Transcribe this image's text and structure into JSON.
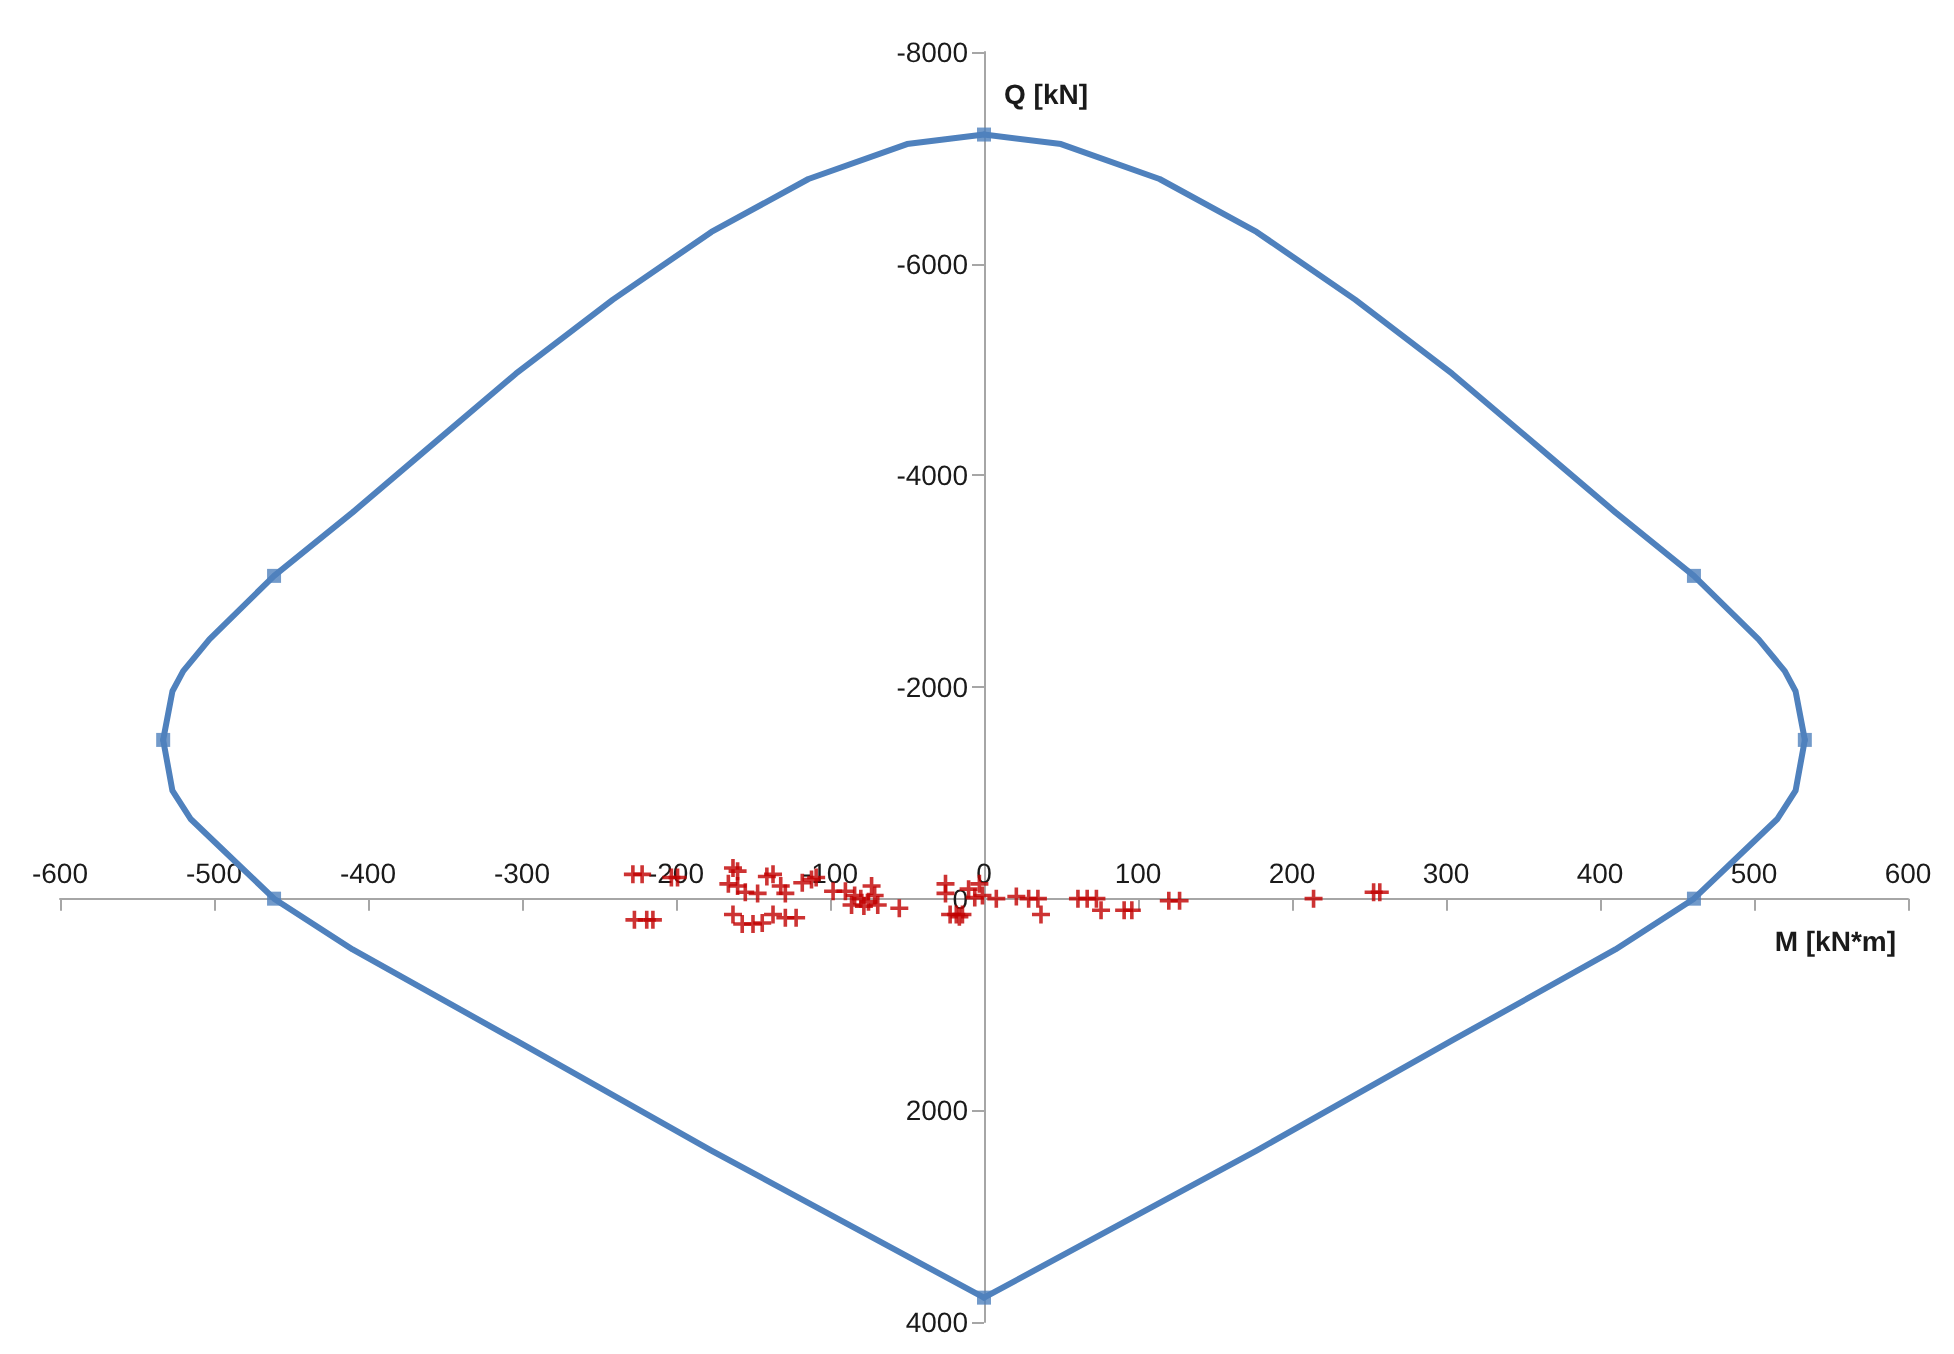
{
  "chart_data": {
    "type": "scatter",
    "xlabel": "M [kN*m]",
    "ylabel": "Q [kN]",
    "xlim": [
      -600,
      600
    ],
    "ylim": [
      4000,
      -8000
    ],
    "xticks": [
      -600,
      -500,
      -400,
      -300,
      -200,
      -100,
      0,
      100,
      200,
      300,
      400,
      500,
      600
    ],
    "yticks": [
      -8000,
      -6000,
      -4000,
      -2000,
      0,
      2000,
      4000
    ],
    "grid": false,
    "series": [
      {
        "type": "line",
        "color": "#4f81bd",
        "marker": "none",
        "line_style": "solid",
        "x": [
          0,
          -50,
          -114,
          -177,
          -241,
          -304,
          -368,
          -410,
          -461,
          -503,
          -520,
          -527,
          -533
        ],
        "values": [
          -7220,
          -7130,
          -6800,
          -6300,
          -5660,
          -4960,
          -4170,
          -3650,
          -3050,
          -2450,
          -2150,
          -1960,
          -1500
        ]
      },
      {
        "type": "line",
        "color": "#4f81bd",
        "marker": "none",
        "line_style": "solid",
        "x": [
          -533,
          -527,
          -515,
          -497,
          -461,
          -410,
          -304,
          -177,
          0
        ],
        "values": [
          -1500,
          -1020,
          -750,
          -500,
          0,
          480,
          1340,
          2380,
          3770
        ]
      },
      {
        "type": "line",
        "color": "#4f81bd",
        "marker": "none",
        "line_style": "solid",
        "x": [
          0,
          177,
          304,
          410,
          461,
          497,
          515,
          527,
          533
        ],
        "values": [
          3770,
          2380,
          1340,
          480,
          0,
          -500,
          -750,
          -1020,
          -1500
        ]
      },
      {
        "type": "line",
        "color": "#4f81bd",
        "marker": "none",
        "line_style": "solid",
        "x": [
          533,
          527,
          520,
          503,
          461,
          410,
          368,
          304,
          241,
          177,
          114,
          50,
          0
        ],
        "values": [
          -1500,
          -1960,
          -2150,
          -2450,
          -3050,
          -3650,
          -4170,
          -4960,
          -5660,
          -6300,
          -6800,
          -7130,
          -7220
        ]
      },
      {
        "color": "#4f81bd",
        "marker": "square",
        "x": [
          0,
          -461,
          -533,
          -461,
          0,
          461,
          533,
          461
        ],
        "values": [
          -7220,
          -3050,
          -1500,
          0,
          3770,
          0,
          -1500,
          -3050
        ]
      },
      {
        "color": "#c00000",
        "marker": "cross",
        "x": [
          -228,
          -222,
          -203,
          -199,
          -227,
          -219,
          -215,
          -163,
          -160,
          -166,
          -160,
          -155,
          -147,
          -141,
          -137,
          -132,
          -129,
          -118,
          -112,
          -109,
          -163,
          -157,
          -150,
          -144,
          -137,
          -129,
          -122,
          -98,
          -90,
          -84,
          -80,
          -75,
          -71,
          -86,
          -78,
          -69,
          -73,
          -55,
          -25,
          -25,
          -22,
          -18,
          -14,
          -10,
          -6,
          -16,
          -3,
          -1,
          8,
          21,
          29,
          35,
          37,
          61,
          67,
          73,
          76,
          91,
          96,
          120,
          127,
          214,
          253,
          257
        ],
        "values": [
          -230,
          -230,
          -200,
          -200,
          200,
          200,
          200,
          -290,
          -260,
          -140,
          -120,
          -60,
          -50,
          -210,
          -230,
          -120,
          -50,
          -150,
          -180,
          -200,
          150,
          240,
          240,
          230,
          150,
          180,
          180,
          -70,
          -70,
          -30,
          0,
          30,
          -30,
          60,
          70,
          60,
          -120,
          90,
          -140,
          -50,
          150,
          150,
          150,
          -90,
          -10,
          170,
          -140,
          -30,
          0,
          -20,
          0,
          0,
          150,
          0,
          0,
          0,
          110,
          110,
          110,
          20,
          20,
          0,
          -60,
          -60
        ]
      }
    ]
  }
}
